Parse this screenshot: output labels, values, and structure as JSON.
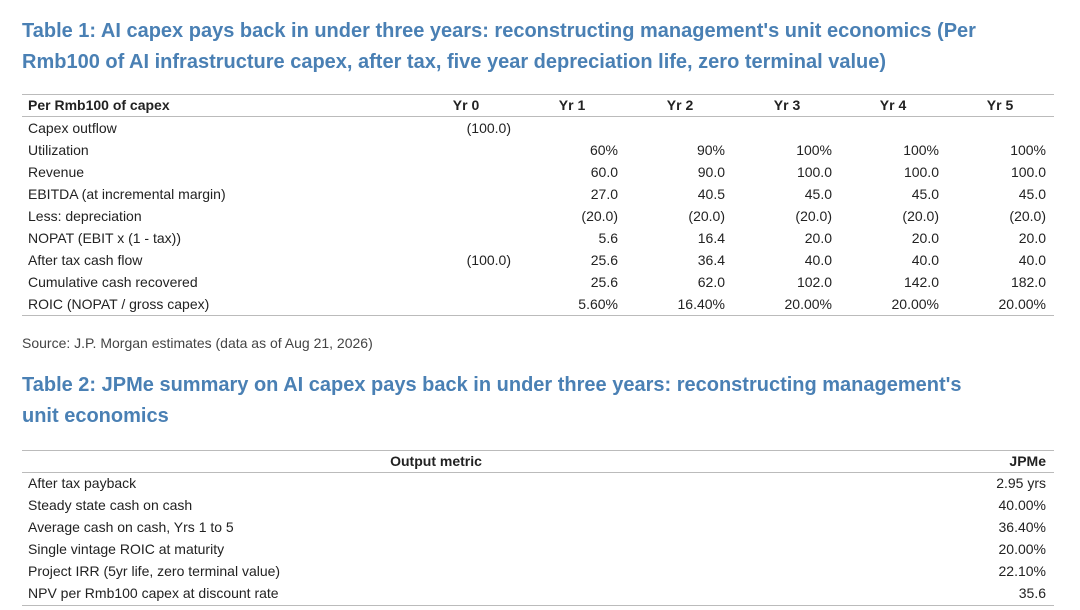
{
  "table1": {
    "title": [
      "Table 1: AI capex pays back in under three years: reconstructing management's unit economics (Per",
      "Rmb100 of AI infrastructure capex, after tax, five year depreciation life, zero terminal value)"
    ],
    "header": [
      "Per Rmb100 of capex",
      "Yr 0",
      "Yr 1",
      "Yr 2",
      "Yr 3",
      "Yr 4",
      "Yr 5"
    ],
    "rows": [
      [
        "Capex outflow",
        "(100.0)",
        null,
        null,
        null,
        null,
        null
      ],
      [
        "Utilization",
        null,
        "60%",
        "90%",
        "100%",
        "100%",
        "100%"
      ],
      [
        "Revenue",
        null,
        "60.0",
        "90.0",
        "100.0",
        "100.0",
        "100.0"
      ],
      [
        "EBITDA (at incremental margin)",
        null,
        "27.0",
        "40.5",
        "45.0",
        "45.0",
        "45.0"
      ],
      [
        "Less: depreciation",
        null,
        "(20.0)",
        "(20.0)",
        "(20.0)",
        "(20.0)",
        "(20.0)"
      ],
      [
        "NOPAT (EBIT x (1 - tax))",
        null,
        "5.6",
        "16.4",
        "20.0",
        "20.0",
        "20.0"
      ],
      [
        "After tax cash flow",
        "(100.0)",
        "25.6",
        "36.4",
        "40.0",
        "40.0",
        "40.0"
      ],
      [
        "Cumulative cash recovered",
        null,
        "25.6",
        "62.0",
        "102.0",
        "142.0",
        "182.0"
      ],
      [
        "ROIC (NOPAT / gross capex)",
        null,
        "5.60%",
        "16.40%",
        "20.00%",
        "20.00%",
        "20.00%"
      ]
    ]
  },
  "source": "Source: J.P. Morgan estimates (data as of Aug 21, 2026)",
  "table2": {
    "title": [
      "Table 2: JPMe summary on AI capex pays back in under three years: reconstructing management's",
      "unit economics"
    ],
    "header": [
      "Output metric",
      "JPMe"
    ],
    "rows": [
      [
        "After tax payback",
        "2.95 yrs"
      ],
      [
        "Steady state cash on cash",
        "40.00%"
      ],
      [
        "Average cash on cash, Yrs 1 to 5",
        "36.40%"
      ],
      [
        "Single vintage ROIC at maturity",
        "20.00%"
      ],
      [
        "Project IRR (5yr life, zero terminal value)",
        "22.10%"
      ],
      [
        "NPV per Rmb100 capex at discount rate",
        "35.6"
      ]
    ]
  }
}
